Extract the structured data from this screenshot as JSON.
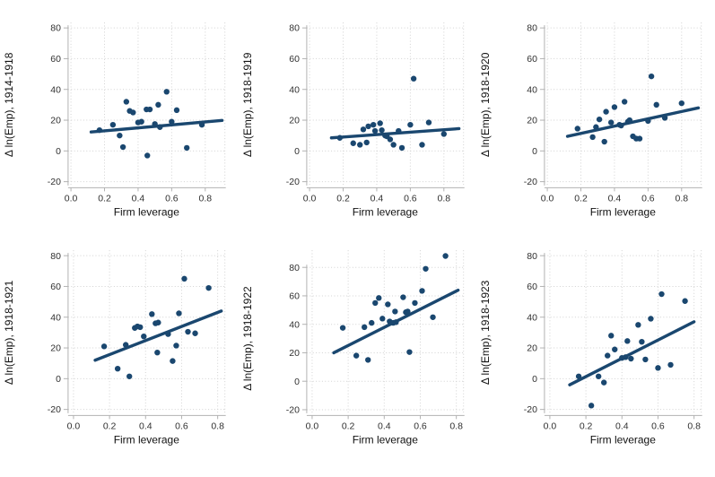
{
  "figure": {
    "background": "#ffffff",
    "marker_color": "#1a476f",
    "fit_line_color": "#1a476f",
    "axis_line_color": "#b2b2b2",
    "grid_color": "#d2d2d2",
    "tick_label_color": "#303030",
    "axis_title_color": "#111111",
    "xlabel": "Firm leverage"
  },
  "chart_data": [
    {
      "type": "scatter",
      "ylabel": "Δ ln(Emp), 1914-1918",
      "xlabel": "Firm leverage",
      "row": "top",
      "x_ticks": [
        0.0,
        0.2,
        0.4,
        0.6,
        0.8
      ],
      "y_ticks": [
        -20,
        0,
        20,
        40,
        60,
        80
      ],
      "xlim": [
        -0.017,
        0.917
      ],
      "ylim": [
        -22.5,
        83.5
      ],
      "points": [
        [
          0.17,
          13.5
        ],
        [
          0.25,
          17
        ],
        [
          0.29,
          10
        ],
        [
          0.31,
          2.5
        ],
        [
          0.33,
          32
        ],
        [
          0.35,
          26
        ],
        [
          0.37,
          25
        ],
        [
          0.4,
          18.5
        ],
        [
          0.42,
          19
        ],
        [
          0.455,
          -3
        ],
        [
          0.45,
          27
        ],
        [
          0.47,
          27
        ],
        [
          0.5,
          17.5
        ],
        [
          0.52,
          30
        ],
        [
          0.53,
          15.5
        ],
        [
          0.57,
          38.5
        ],
        [
          0.6,
          19
        ],
        [
          0.63,
          26.5
        ],
        [
          0.69,
          2
        ],
        [
          0.78,
          17
        ]
      ],
      "fit_line": {
        "x": [
          0.12,
          0.9
        ],
        "y": [
          12.3,
          19.8
        ]
      }
    },
    {
      "type": "scatter",
      "ylabel": "Δ ln(Emp), 1918-1919",
      "xlabel": "Firm leverage",
      "row": "top",
      "x_ticks": [
        0.0,
        0.2,
        0.4,
        0.6,
        0.8
      ],
      "y_ticks": [
        -20,
        0,
        20,
        40,
        60,
        80
      ],
      "xlim": [
        -0.017,
        0.917
      ],
      "ylim": [
        -22.5,
        83.5
      ],
      "points": [
        [
          0.18,
          8.5
        ],
        [
          0.26,
          5
        ],
        [
          0.3,
          4
        ],
        [
          0.32,
          14
        ],
        [
          0.34,
          5.5
        ],
        [
          0.35,
          16
        ],
        [
          0.38,
          17
        ],
        [
          0.39,
          13
        ],
        [
          0.42,
          18
        ],
        [
          0.43,
          13.5
        ],
        [
          0.45,
          10
        ],
        [
          0.46,
          9.5
        ],
        [
          0.48,
          7.5
        ],
        [
          0.5,
          4
        ],
        [
          0.53,
          13
        ],
        [
          0.55,
          2
        ],
        [
          0.6,
          17
        ],
        [
          0.62,
          47
        ],
        [
          0.67,
          4
        ],
        [
          0.71,
          18.5
        ],
        [
          0.8,
          11
        ]
      ],
      "fit_line": {
        "x": [
          0.13,
          0.89
        ],
        "y": [
          8.5,
          14.5
        ]
      }
    },
    {
      "type": "scatter",
      "ylabel": "Δ ln(Emp), 1918-1920",
      "xlabel": "Firm leverage",
      "row": "top",
      "x_ticks": [
        0.0,
        0.2,
        0.4,
        0.6,
        0.8
      ],
      "y_ticks": [
        -20,
        0,
        20,
        40,
        60,
        80
      ],
      "xlim": [
        -0.017,
        0.917
      ],
      "ylim": [
        -22.5,
        83.5
      ],
      "points": [
        [
          0.18,
          14.5
        ],
        [
          0.27,
          9
        ],
        [
          0.29,
          15.5
        ],
        [
          0.31,
          20.5
        ],
        [
          0.34,
          6
        ],
        [
          0.35,
          25.5
        ],
        [
          0.38,
          18.5
        ],
        [
          0.4,
          28.5
        ],
        [
          0.43,
          17
        ],
        [
          0.44,
          16.5
        ],
        [
          0.46,
          32
        ],
        [
          0.48,
          19
        ],
        [
          0.49,
          20
        ],
        [
          0.51,
          9.5
        ],
        [
          0.53,
          8
        ],
        [
          0.55,
          8
        ],
        [
          0.6,
          19.5
        ],
        [
          0.62,
          48.5
        ],
        [
          0.65,
          30
        ],
        [
          0.7,
          21.5
        ],
        [
          0.8,
          31
        ]
      ],
      "fit_line": {
        "x": [
          0.12,
          0.9
        ],
        "y": [
          9.5,
          28.0
        ]
      }
    },
    {
      "type": "scatter",
      "ylabel": "Δ ln(Emp), 1918-1921",
      "xlabel": "Firm leverage",
      "row": "bottom",
      "x_ticks": [
        0.0,
        0.2,
        0.4,
        0.6,
        0.8
      ],
      "y_ticks": [
        -20,
        0,
        20,
        40,
        60,
        80
      ],
      "xlim": [
        -0.03,
        0.84
      ],
      "ylim": [
        -22.5,
        83.5
      ],
      "points": [
        [
          0.17,
          21
        ],
        [
          0.245,
          6.5
        ],
        [
          0.29,
          22
        ],
        [
          0.31,
          1.5
        ],
        [
          0.34,
          33
        ],
        [
          0.355,
          34
        ],
        [
          0.37,
          33.5
        ],
        [
          0.39,
          27.5
        ],
        [
          0.435,
          42
        ],
        [
          0.455,
          36
        ],
        [
          0.465,
          17
        ],
        [
          0.47,
          36.5
        ],
        [
          0.525,
          29
        ],
        [
          0.55,
          11.5
        ],
        [
          0.57,
          21.5
        ],
        [
          0.585,
          42.5
        ],
        [
          0.615,
          65
        ],
        [
          0.635,
          30.5
        ],
        [
          0.675,
          29.5
        ],
        [
          0.75,
          59
        ]
      ],
      "fit_line": {
        "x": [
          0.12,
          0.82
        ],
        "y": [
          12.0,
          44.0
        ]
      }
    },
    {
      "type": "scatter",
      "ylabel": "Δ ln(Emp), 1918-1922",
      "xlabel": "Firm leverage",
      "row": "bottom",
      "x_ticks": [
        0.0,
        0.2,
        0.4,
        0.6,
        0.8
      ],
      "y_ticks": [
        -20,
        0,
        20,
        40,
        60,
        80
      ],
      "xlim": [
        -0.03,
        0.84
      ],
      "ylim": [
        -22.5,
        92
      ],
      "points": [
        [
          0.17,
          37.5
        ],
        [
          0.245,
          18
        ],
        [
          0.29,
          38
        ],
        [
          0.31,
          15
        ],
        [
          0.33,
          41
        ],
        [
          0.35,
          55
        ],
        [
          0.37,
          58.5
        ],
        [
          0.39,
          44
        ],
        [
          0.42,
          54
        ],
        [
          0.43,
          42
        ],
        [
          0.45,
          41
        ],
        [
          0.46,
          49
        ],
        [
          0.465,
          41.5
        ],
        [
          0.505,
          59
        ],
        [
          0.52,
          48.5
        ],
        [
          0.53,
          49
        ],
        [
          0.54,
          20.5
        ],
        [
          0.57,
          55
        ],
        [
          0.61,
          63.5
        ],
        [
          0.63,
          79
        ],
        [
          0.67,
          45
        ],
        [
          0.74,
          88
        ]
      ],
      "fit_line": {
        "x": [
          0.12,
          0.81
        ],
        "y": [
          20.0,
          64.0
        ]
      }
    },
    {
      "type": "scatter",
      "ylabel": "Δ ln(Emp), 1918-1923",
      "xlabel": "Firm leverage",
      "row": "bottom",
      "x_ticks": [
        0.0,
        0.2,
        0.4,
        0.6,
        0.8
      ],
      "y_ticks": [
        -20,
        0,
        20,
        40,
        60,
        80
      ],
      "xlim": [
        -0.03,
        0.84
      ],
      "ylim": [
        -22.5,
        83.5
      ],
      "points": [
        [
          0.16,
          1.5
        ],
        [
          0.23,
          -17.5
        ],
        [
          0.27,
          1.5
        ],
        [
          0.3,
          -2.5
        ],
        [
          0.32,
          15
        ],
        [
          0.34,
          28
        ],
        [
          0.36,
          19
        ],
        [
          0.4,
          13.5
        ],
        [
          0.42,
          14
        ],
        [
          0.43,
          24.5
        ],
        [
          0.45,
          13
        ],
        [
          0.49,
          35
        ],
        [
          0.51,
          24
        ],
        [
          0.53,
          12.5
        ],
        [
          0.56,
          39
        ],
        [
          0.6,
          7
        ],
        [
          0.62,
          55
        ],
        [
          0.67,
          9
        ],
        [
          0.75,
          50.5
        ]
      ],
      "fit_line": {
        "x": [
          0.11,
          0.8
        ],
        "y": [
          -4.0,
          37.0
        ]
      }
    }
  ]
}
